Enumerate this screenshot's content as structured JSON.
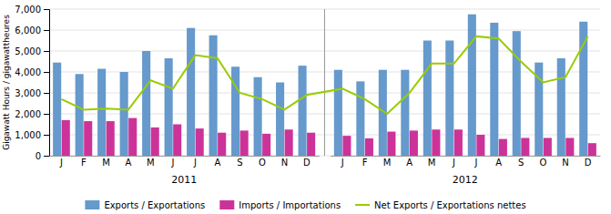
{
  "chart_data": {
    "type": "bar",
    "y_label": "Gigawatt Hours / gigawattheures",
    "categories": [
      "J",
      "F",
      "M",
      "A",
      "M",
      "J",
      "J",
      "A",
      "S",
      "O",
      "N",
      "D",
      "J",
      "F",
      "M",
      "A",
      "M",
      "J",
      "J",
      "A",
      "S",
      "O",
      "N",
      "D"
    ],
    "annotations": [
      "2011",
      "2012"
    ],
    "series": [
      {
        "name": "Exports / Exportations",
        "type": "bar",
        "color": "#6699CC",
        "values": [
          4450,
          3900,
          4150,
          4000,
          5000,
          4650,
          6100,
          5750,
          4250,
          3750,
          3500,
          4300,
          4100,
          3550,
          4100,
          4100,
          5500,
          5500,
          6750,
          6350,
          5950,
          4450,
          4650,
          6400
        ]
      },
      {
        "name": "Imports / Importations",
        "type": "bar",
        "color": "#CC3399",
        "values": [
          1700,
          1650,
          1650,
          1800,
          1350,
          1500,
          1300,
          1100,
          1200,
          1050,
          1250,
          1100,
          950,
          830,
          1150,
          1200,
          1250,
          1250,
          1000,
          800,
          850,
          850,
          850,
          600
        ]
      },
      {
        "name": "Net Exports / Exportations nettes",
        "type": "line",
        "color": "#99CC00",
        "values": [
          2700,
          2200,
          2250,
          2200,
          3600,
          3200,
          4800,
          4650,
          3000,
          2700,
          2200,
          2900,
          3200,
          2700,
          2000,
          3000,
          4400,
          4400,
          5700,
          5600,
          4500,
          3500,
          3750,
          5700
        ]
      }
    ],
    "ylim": [
      0,
      7000
    ],
    "yticks": [
      0,
      {
        "value": 1000,
        "label": "1,000"
      },
      {
        "value": 2000,
        "label": "2,000"
      },
      {
        "value": 3000,
        "label": "3,000"
      },
      {
        "value": 4000,
        "label": "4,000"
      },
      {
        "value": 5000,
        "label": "5,000"
      },
      {
        "value": 6000,
        "label": "6,000"
      },
      {
        "value": 7000,
        "label": "7,000"
      }
    ],
    "grid": true,
    "legend": "bottom"
  }
}
